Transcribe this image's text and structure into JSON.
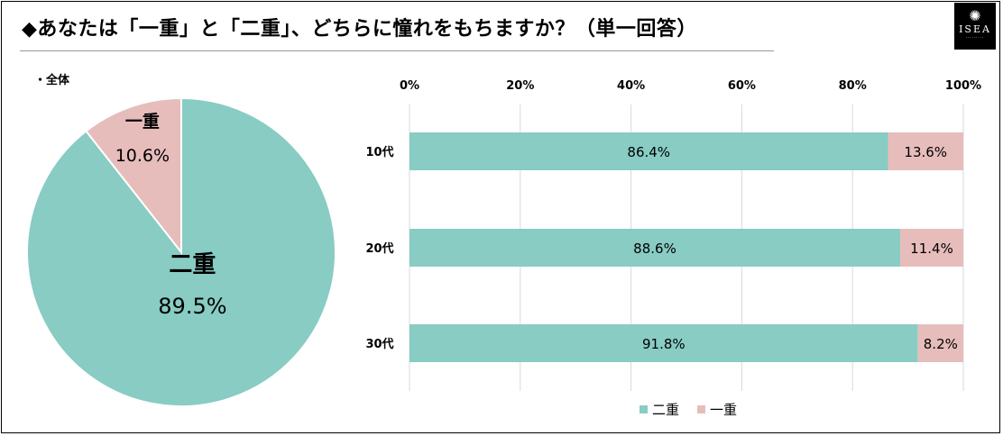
{
  "header": {
    "title": "◆あなたは「一重」と「二重」、どちらに憧れをもちますか？（単一回答）",
    "logo_text": "ISEA",
    "logo_icon": "starburst-icon"
  },
  "colors": {
    "double": "#88ccc3",
    "single": "#e6bdbb",
    "grid": "#d9d9d9"
  },
  "chart_data": [
    {
      "type": "pie",
      "title": "・全体",
      "slices": [
        {
          "label": "二重",
          "value": 89.5,
          "display": "89.5%"
        },
        {
          "label": "一重",
          "value": 10.6,
          "display": "10.6%"
        }
      ]
    },
    {
      "type": "bar",
      "orientation": "horizontal",
      "stacked": true,
      "categories": [
        "10代",
        "20代",
        "30代"
      ],
      "series": [
        {
          "name": "二重",
          "values": [
            86.4,
            88.6,
            91.8
          ],
          "labels": [
            "86.4%",
            "88.6%",
            "91.8%"
          ]
        },
        {
          "name": "一重",
          "values": [
            13.6,
            11.4,
            8.2
          ],
          "labels": [
            "13.6%",
            "11.4%",
            "8.2%"
          ]
        }
      ],
      "xlim": [
        0,
        100
      ],
      "xticks": [
        "0%",
        "20%",
        "40%",
        "60%",
        "80%",
        "100%"
      ],
      "grid": true,
      "legend_position": "bottom"
    }
  ]
}
